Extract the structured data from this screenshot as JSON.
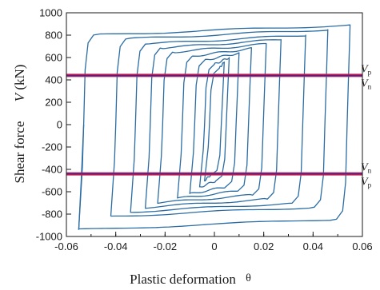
{
  "chart_data": {
    "type": "line",
    "title": "",
    "xlabel": "Plastic deformation",
    "xlabel_symbol": "θ",
    "ylabel": "Shear force",
    "ylabel_symbol": "V",
    "ylabel_unit": "(kN)",
    "xlim": [
      -0.06,
      0.06
    ],
    "ylim": [
      -1000,
      1000
    ],
    "x_ticks": [
      -0.06,
      -0.04,
      -0.02,
      0,
      0.02,
      0.04,
      0.06
    ],
    "x_tick_labels": [
      "-0.06",
      "-0.04",
      "-0.02",
      "0",
      "0.02",
      "0.04",
      "0.06"
    ],
    "y_ticks": [
      -1000,
      -800,
      -600,
      -400,
      -200,
      0,
      200,
      400,
      600,
      800,
      1000
    ],
    "y_tick_labels": [
      "-1000",
      "-800",
      "-600",
      "-400",
      "-200",
      "0",
      "200",
      "400",
      "600",
      "800",
      "1000"
    ],
    "grid": false,
    "series_color": "#2b6ca3",
    "hysteresis_loops": [
      {
        "amp_pos": 0.004,
        "amp_neg": -0.004,
        "v_pos": 560,
        "v_neg": -500
      },
      {
        "amp_pos": 0.006,
        "amp_neg": -0.006,
        "v_pos": 600,
        "v_neg": -560
      },
      {
        "amp_pos": 0.01,
        "amp_neg": -0.01,
        "v_pos": 640,
        "v_neg": -620
      },
      {
        "amp_pos": 0.015,
        "amp_neg": -0.015,
        "v_pos": 680,
        "v_neg": -660
      },
      {
        "amp_pos": 0.021,
        "amp_neg": -0.023,
        "v_pos": 720,
        "v_neg": -700
      },
      {
        "amp_pos": 0.027,
        "amp_neg": -0.028,
        "v_pos": 760,
        "v_neg": -740
      },
      {
        "amp_pos": 0.037,
        "amp_neg": -0.034,
        "v_pos": 800,
        "v_neg": -780
      },
      {
        "amp_pos": 0.046,
        "amp_neg": -0.042,
        "v_pos": 850,
        "v_neg": -820
      },
      {
        "amp_pos": 0.055,
        "amp_neg": -0.055,
        "v_pos": 890,
        "v_neg": -940
      }
    ],
    "final_branch": [
      {
        "x": -0.055,
        "y": -940
      },
      {
        "x": -0.054,
        "y": -500
      },
      {
        "x": -0.053,
        "y": 0
      }
    ],
    "reference_lines": [
      {
        "value": 440,
        "upper_label": "V",
        "upper_sub": "p",
        "lower_label": "V",
        "lower_sub": "n",
        "color_outer": "#d11a4a",
        "color_inner": "#2a2f9a"
      },
      {
        "value": -440,
        "upper_label": "V",
        "upper_sub": "n",
        "lower_label": "V",
        "lower_sub": "p",
        "color_outer": "#d11a4a",
        "color_inner": "#2a2f9a"
      }
    ]
  }
}
